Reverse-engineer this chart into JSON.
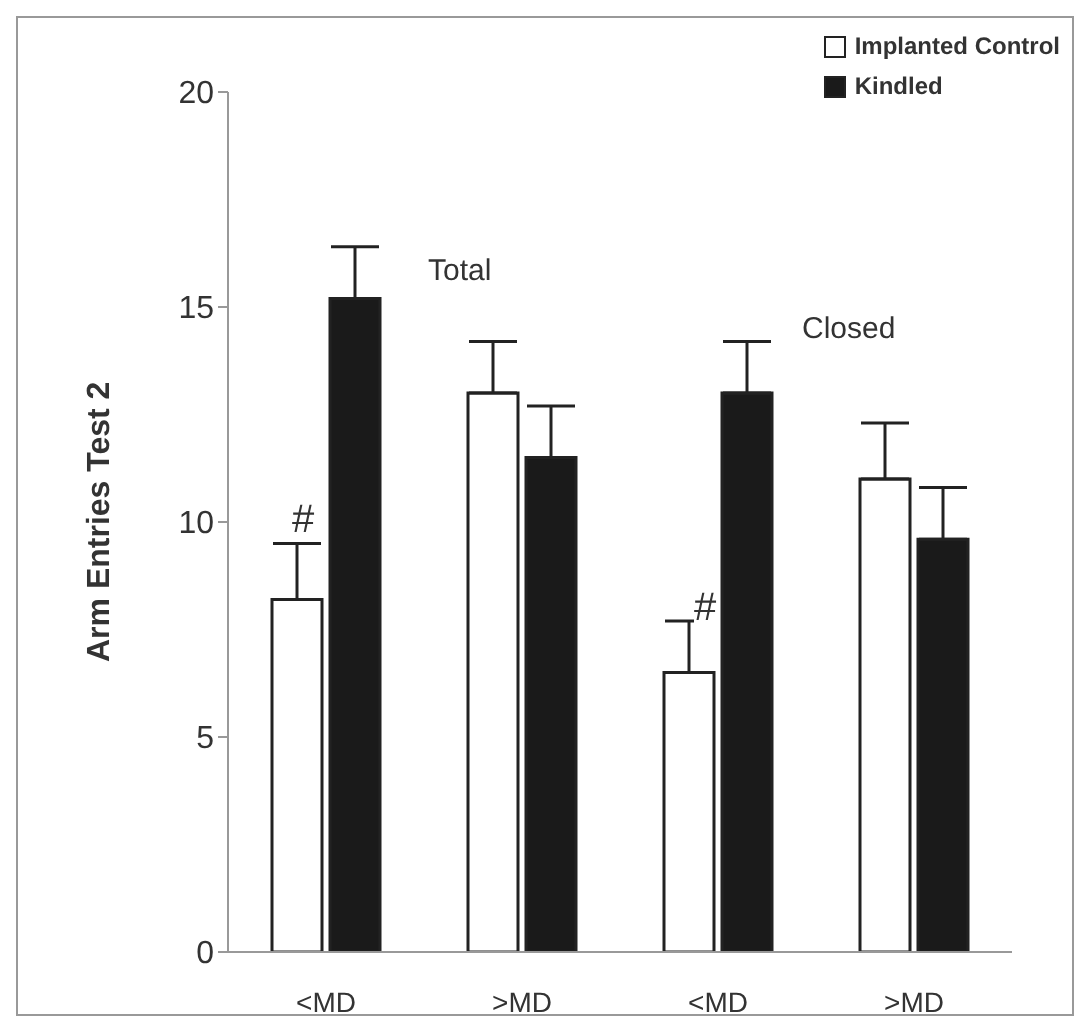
{
  "chart_data": {
    "type": "bar",
    "ylabel": "Arm Entries Test 2",
    "categories": [
      "<MD",
      ">MD",
      "<MD",
      ">MD"
    ],
    "series": [
      {
        "name": "Implanted Control",
        "color": "#ffffff",
        "values": [
          8.2,
          13.0,
          6.5,
          11.0
        ],
        "errors": [
          [
            8.2,
            9.5
          ],
          [
            13.0,
            14.2
          ],
          [
            6.5,
            7.7
          ],
          [
            11.0,
            12.3
          ]
        ]
      },
      {
        "name": "Kindled",
        "color": "#1a1a1a",
        "values": [
          15.2,
          11.5,
          13.0,
          9.6
        ],
        "errors": [
          [
            15.2,
            16.4
          ],
          [
            11.5,
            12.7
          ],
          [
            13.0,
            14.2
          ],
          [
            9.6,
            10.8
          ]
        ]
      }
    ],
    "ylim": [
      0,
      20
    ],
    "yticks": [
      0,
      5,
      10,
      15,
      20
    ],
    "grid": false,
    "legend": "top right",
    "annotations": [
      "Total",
      "Closed",
      "#",
      "#"
    ]
  }
}
